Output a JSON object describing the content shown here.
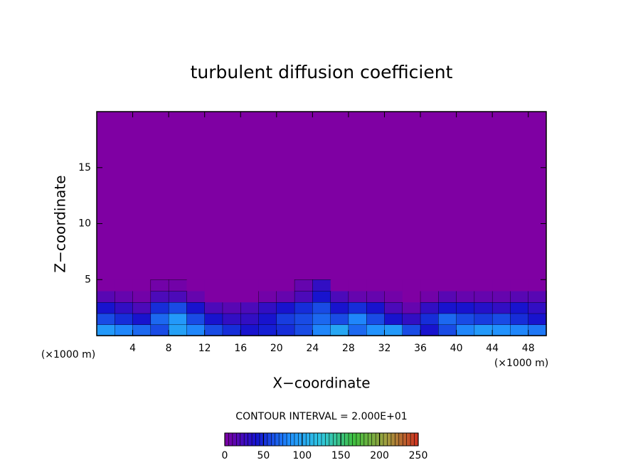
{
  "chart_data": {
    "type": "contour",
    "title": "turbulent diffusion coefficient",
    "x_label": "X−coordinate",
    "y_label": "Z−coordinate",
    "x_unit_label": "(×1000 m)",
    "y_unit_label": "(×1000 m)",
    "xlim": [
      0,
      50
    ],
    "ylim": [
      0,
      20
    ],
    "xticks": [
      4,
      8,
      12,
      16,
      20,
      24,
      28,
      32,
      36,
      40,
      44,
      48
    ],
    "yticks": [
      5,
      10,
      15
    ],
    "background_color": "#7f00a3",
    "field": {
      "x": [
        1,
        3,
        5,
        7,
        9,
        11,
        13,
        15,
        17,
        19,
        21,
        23,
        25,
        27,
        29,
        31,
        33,
        35,
        37,
        39,
        41,
        43,
        45,
        47,
        49
      ],
      "z": [
        0.5,
        1.5,
        2.5,
        3.5,
        4.5
      ],
      "values": [
        [
          90,
          80,
          70,
          60,
          95,
          80,
          60,
          50,
          40,
          45,
          50,
          60,
          80,
          100,
          70,
          85,
          90,
          60,
          40,
          60,
          80,
          90,
          85,
          80,
          75
        ],
        [
          60,
          50,
          40,
          70,
          90,
          60,
          40,
          30,
          30,
          40,
          55,
          60,
          70,
          60,
          80,
          60,
          40,
          30,
          50,
          70,
          60,
          55,
          60,
          50,
          40
        ],
        [
          40,
          30,
          20,
          50,
          60,
          40,
          20,
          15,
          20,
          30,
          40,
          50,
          60,
          40,
          50,
          40,
          20,
          10,
          30,
          40,
          40,
          35,
          30,
          40,
          30
        ],
        [
          15,
          10,
          5,
          20,
          20,
          10,
          0,
          0,
          0,
          5,
          10,
          20,
          40,
          20,
          10,
          10,
          5,
          0,
          5,
          15,
          10,
          10,
          10,
          15,
          15
        ],
        [
          0,
          0,
          0,
          5,
          5,
          0,
          0,
          0,
          0,
          0,
          0,
          10,
          30,
          0,
          0,
          0,
          0,
          0,
          0,
          0,
          0,
          0,
          0,
          0,
          0
        ]
      ]
    },
    "colorbar": {
      "title": "CONTOUR INTERVAL = 2.000E+01",
      "xlim": [
        0,
        250
      ],
      "xticks": [
        0,
        50,
        100,
        150,
        200,
        250
      ],
      "colors": [
        "#7f00a3",
        "#1414d0",
        "#2090ff",
        "#30c8e0",
        "#40c040",
        "#a0a040",
        "#d03020"
      ]
    }
  }
}
